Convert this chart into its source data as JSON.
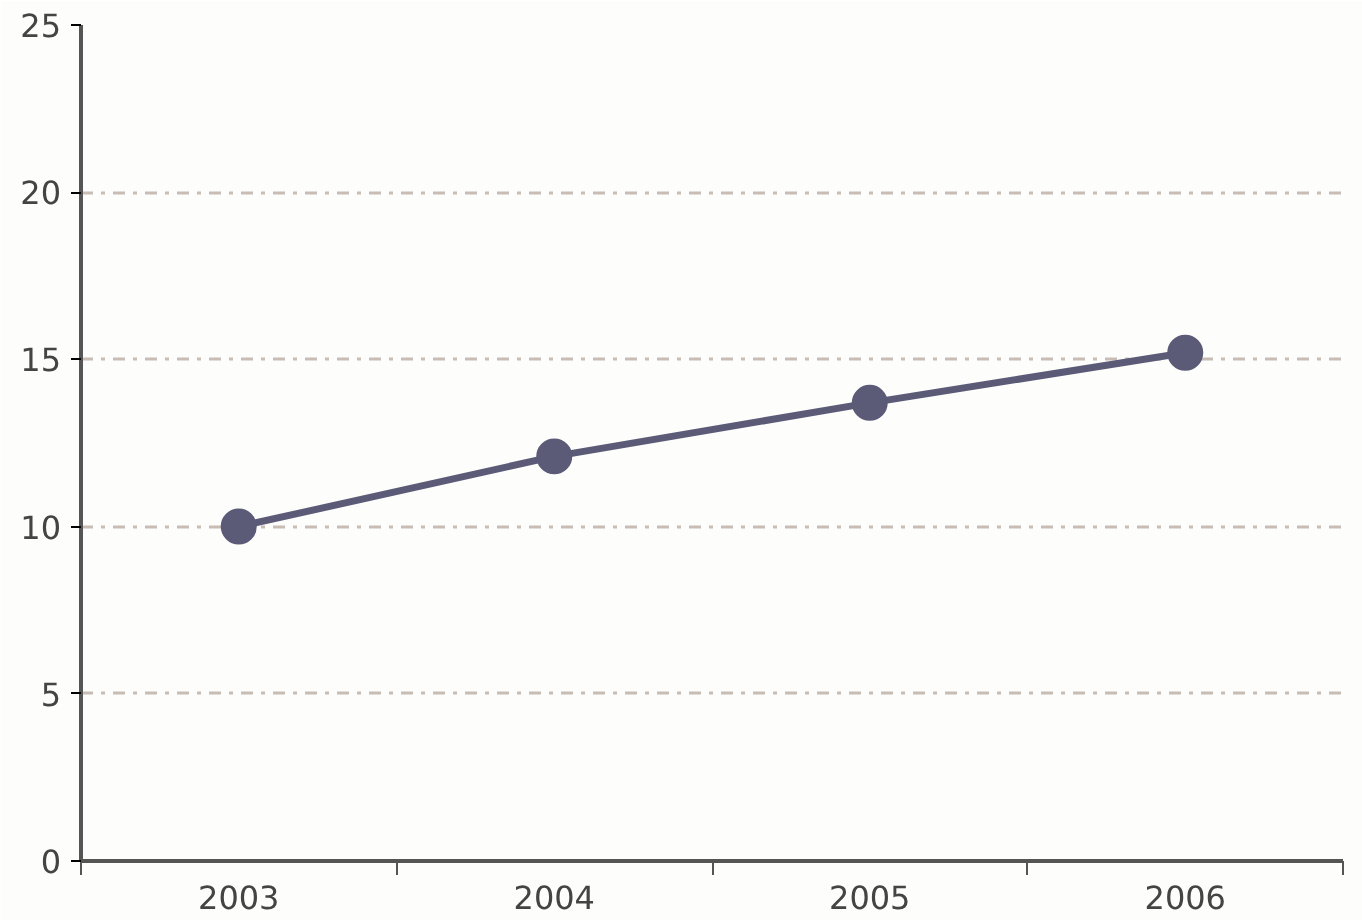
{
  "chart_data": {
    "type": "line",
    "categories": [
      "2003",
      "2004",
      "2005",
      "2006"
    ],
    "series": [
      {
        "color": "#5b5b78",
        "values": [
          10.0,
          12.1,
          13.7,
          15.2
        ]
      }
    ],
    "ylim": [
      0,
      25
    ],
    "yticks": [
      0,
      5,
      10,
      15,
      20,
      25
    ],
    "grid": "y",
    "marker": "circle",
    "line_style": "solid"
  }
}
